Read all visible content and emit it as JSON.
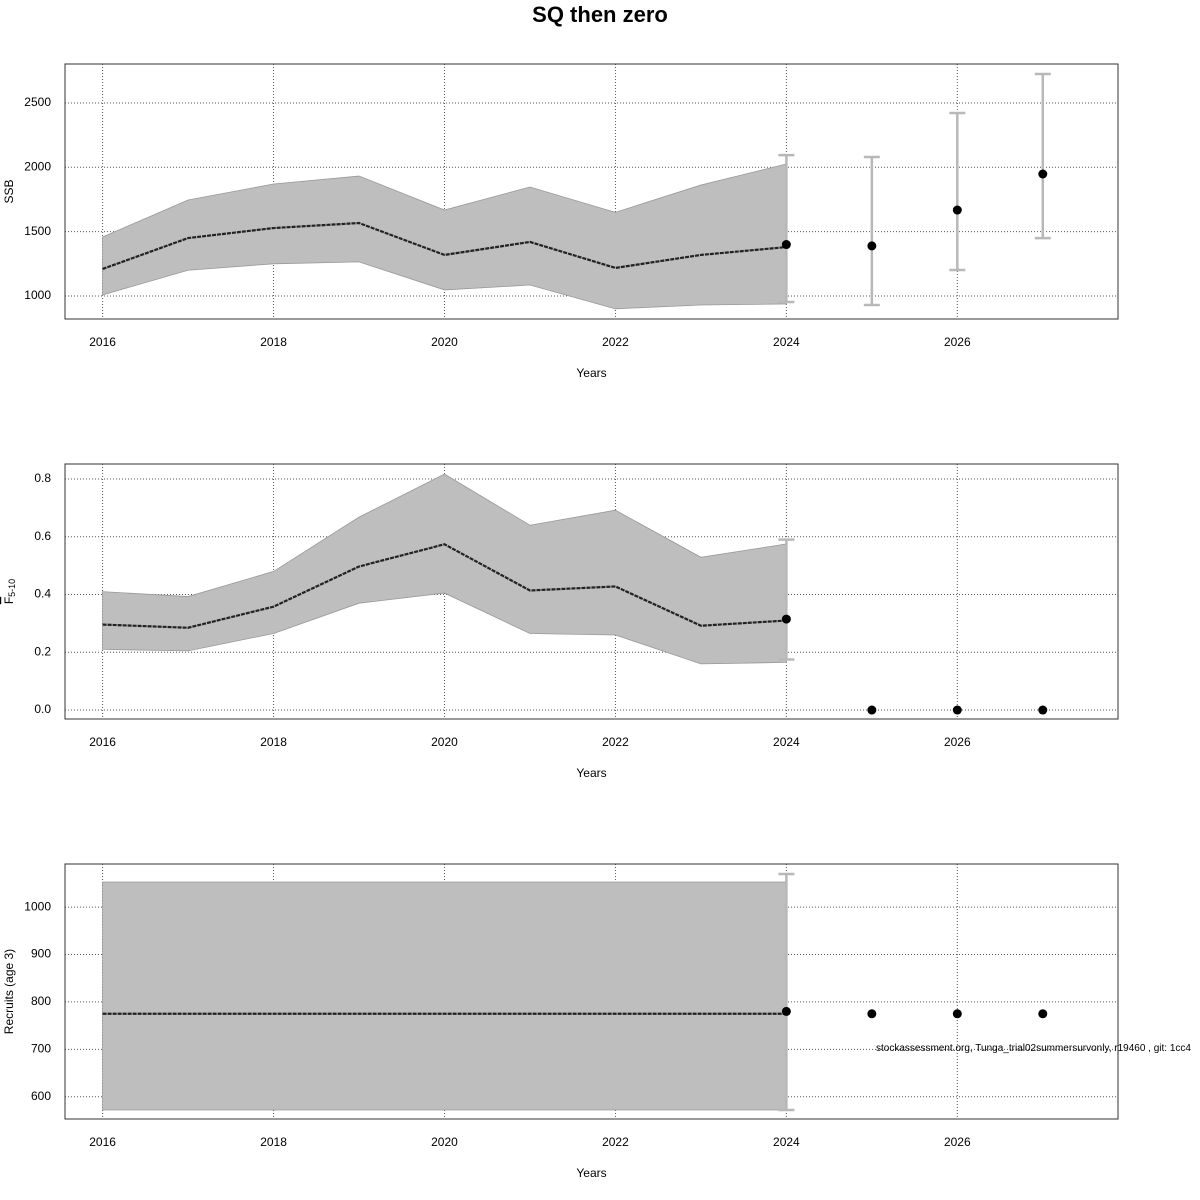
{
  "title": "SQ then zero",
  "chart_data": [
    {
      "type": "line",
      "xlabel": "Years",
      "ylabel": "SSB",
      "x": [
        2016,
        2017,
        2018,
        2019,
        2020,
        2021,
        2022,
        2023,
        2024
      ],
      "estimate": {
        "values": [
          1210,
          1450,
          1528,
          1567,
          1319,
          1420,
          1218,
          1319,
          1380
        ],
        "upper": [
          1458,
          1746,
          1870,
          1932,
          1668,
          1847,
          1650,
          1862,
          2026
        ],
        "lower": [
          1008,
          1200,
          1250,
          1265,
          1047,
          1085,
          900,
          930,
          938
        ]
      },
      "forecast": {
        "x": [
          2024,
          2025,
          2026,
          2027
        ],
        "values": [
          1400,
          1389,
          1668,
          1948
        ],
        "low": [
          953,
          930,
          1202,
          1450
        ],
        "high": [
          2095,
          2080,
          2422,
          2725
        ]
      },
      "band_color": "#bebebe",
      "line_color": "#222222",
      "point_color": "#000000",
      "bar_color": "#b8b8b8",
      "xlim": [
        2015.56,
        2027.88
      ],
      "xticks": [
        2016,
        2018,
        2020,
        2022,
        2024,
        2026
      ],
      "ylim": [
        821,
        2803
      ],
      "yticks": [
        1000,
        1500,
        2000,
        2500
      ],
      "grid": true
    },
    {
      "type": "line",
      "xlabel": "Years",
      "ylabel": {
        "main": "F",
        "sub": "5-10"
      },
      "x": [
        2016,
        2017,
        2018,
        2019,
        2020,
        2021,
        2022,
        2023,
        2024
      ],
      "estimate": {
        "values": [
          0.296,
          0.285,
          0.358,
          0.497,
          0.574,
          0.414,
          0.428,
          0.292,
          0.31
        ],
        "upper": [
          0.41,
          0.393,
          0.48,
          0.668,
          0.817,
          0.64,
          0.692,
          0.529,
          0.575
        ],
        "lower": [
          0.21,
          0.205,
          0.265,
          0.37,
          0.405,
          0.265,
          0.26,
          0.16,
          0.165
        ]
      },
      "forecast": {
        "x": [
          2024,
          2025,
          2026,
          2027
        ],
        "values": [
          0.315,
          0,
          0,
          0
        ],
        "low": [
          0.175,
          0,
          0,
          0
        ],
        "high": [
          0.59,
          0,
          0,
          0
        ]
      },
      "band_color": "#bebebe",
      "line_color": "#222222",
      "point_color": "#000000",
      "bar_color": "#b8b8b8",
      "xlim": [
        2015.56,
        2027.88
      ],
      "xticks": [
        2016,
        2018,
        2020,
        2022,
        2024,
        2026
      ],
      "ylim": [
        -0.031,
        0.852
      ],
      "yticks": [
        {
          "value": 0,
          "label": "0.0"
        },
        0.2,
        0.4,
        0.6,
        0.8
      ],
      "grid": true
    },
    {
      "type": "line",
      "xlabel": "Years",
      "ylabel": "Recruits (age 3)",
      "x": [
        2016,
        2017,
        2018,
        2019,
        2020,
        2021,
        2022,
        2023,
        2024
      ],
      "estimate": {
        "values": [
          775,
          775,
          775,
          775,
          775,
          775,
          775,
          775,
          775
        ],
        "upper": [
          1053,
          1053,
          1053,
          1053,
          1053,
          1053,
          1053,
          1053,
          1053
        ],
        "lower": [
          572,
          572,
          572,
          572,
          572,
          572,
          572,
          572,
          572
        ]
      },
      "forecast": {
        "x": [
          2024,
          2025,
          2026,
          2027
        ],
        "values": [
          780,
          775,
          775,
          775
        ],
        "low": [
          572,
          775,
          775,
          775
        ],
        "high": [
          1070,
          775,
          775,
          775
        ]
      },
      "band_color": "#bebebe",
      "line_color": "#222222",
      "point_color": "#000000",
      "bar_color": "#b8b8b8",
      "xlim": [
        2015.56,
        2027.88
      ],
      "xticks": [
        2016,
        2018,
        2020,
        2022,
        2024,
        2026
      ],
      "ylim": [
        553,
        1091
      ],
      "yticks": [
        600,
        700,
        800,
        900,
        1000
      ],
      "grid": true,
      "annotation": "stockassessment.org, Tunga_trial02summersurvonly, r19460 , git: 1cc4"
    }
  ]
}
